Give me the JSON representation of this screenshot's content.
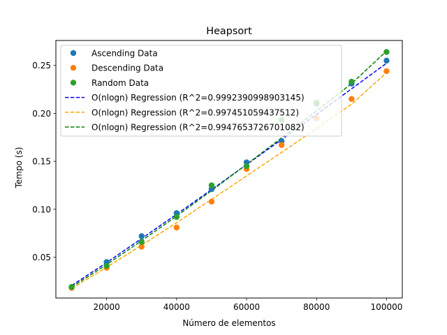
{
  "chart_data": {
    "type": "scatter",
    "title": "Heapsort",
    "xlabel": "Número de elementos",
    "ylabel": "Tempo (s)",
    "xlim": [
      5500,
      104500
    ],
    "ylim": [
      0.0075,
      0.276
    ],
    "xticks": [
      20000,
      40000,
      60000,
      80000,
      100000
    ],
    "xtick_labels": [
      "20000",
      "40000",
      "60000",
      "80000",
      "100000"
    ],
    "yticks": [
      0.05,
      0.1,
      0.15,
      0.2,
      0.25
    ],
    "ytick_labels": [
      "0.05",
      "0.10",
      "0.15",
      "0.20",
      "0.25"
    ],
    "grid": false,
    "legend_position": "upper-left",
    "series": [
      {
        "name": "Ascending Data",
        "kind": "scatter",
        "color": "#1f77b4",
        "x": [
          10000,
          20000,
          30000,
          40000,
          50000,
          60000,
          70000,
          80000,
          90000,
          100000
        ],
        "y": [
          0.019,
          0.045,
          0.072,
          0.096,
          0.121,
          0.149,
          0.171,
          0.21,
          0.231,
          0.255
        ]
      },
      {
        "name": "Descending Data",
        "kind": "scatter",
        "color": "#ff7f0e",
        "x": [
          10000,
          20000,
          30000,
          40000,
          50000,
          60000,
          70000,
          80000,
          90000,
          100000
        ],
        "y": [
          0.018,
          0.039,
          0.061,
          0.081,
          0.108,
          0.142,
          0.167,
          0.195,
          0.215,
          0.244
        ]
      },
      {
        "name": "Random Data",
        "kind": "scatter",
        "color": "#2ca02c",
        "x": [
          10000,
          20000,
          30000,
          40000,
          50000,
          60000,
          70000,
          80000,
          90000,
          100000
        ],
        "y": [
          0.019,
          0.041,
          0.066,
          0.092,
          0.125,
          0.145,
          0.193,
          0.211,
          0.233,
          0.264
        ]
      },
      {
        "name": "O(nlogn) Regression (R^2=0.9992390998903145)",
        "kind": "line",
        "dash": true,
        "color": "#0000ff",
        "x": [
          10000,
          20000,
          30000,
          40000,
          50000,
          60000,
          70000,
          80000,
          90000,
          100000
        ],
        "y": [
          0.0205,
          0.0444,
          0.0695,
          0.0948,
          0.1205,
          0.1466,
          0.1727,
          0.1989,
          0.2256,
          0.2523
        ]
      },
      {
        "name": "O(nlogn) Regression (R^2=0.997451059437512)",
        "kind": "line",
        "dash": true,
        "color": "#ffa500",
        "x": [
          10000,
          20000,
          30000,
          40000,
          50000,
          60000,
          70000,
          80000,
          90000,
          100000
        ],
        "y": [
          0.0175,
          0.0395,
          0.0625,
          0.086,
          0.1103,
          0.1348,
          0.1593,
          0.1842,
          0.2095,
          0.2425
        ]
      },
      {
        "name": "O(nlogn) Regression (R^2=0.9947653726701082)",
        "kind": "line",
        "dash": true,
        "color": "#008000",
        "x": [
          10000,
          20000,
          30000,
          40000,
          50000,
          60000,
          70000,
          80000,
          90000,
          100000
        ],
        "y": [
          0.019,
          0.0423,
          0.0672,
          0.0929,
          0.1195,
          0.1468,
          0.1745,
          0.2025,
          0.231,
          0.265
        ]
      }
    ]
  }
}
